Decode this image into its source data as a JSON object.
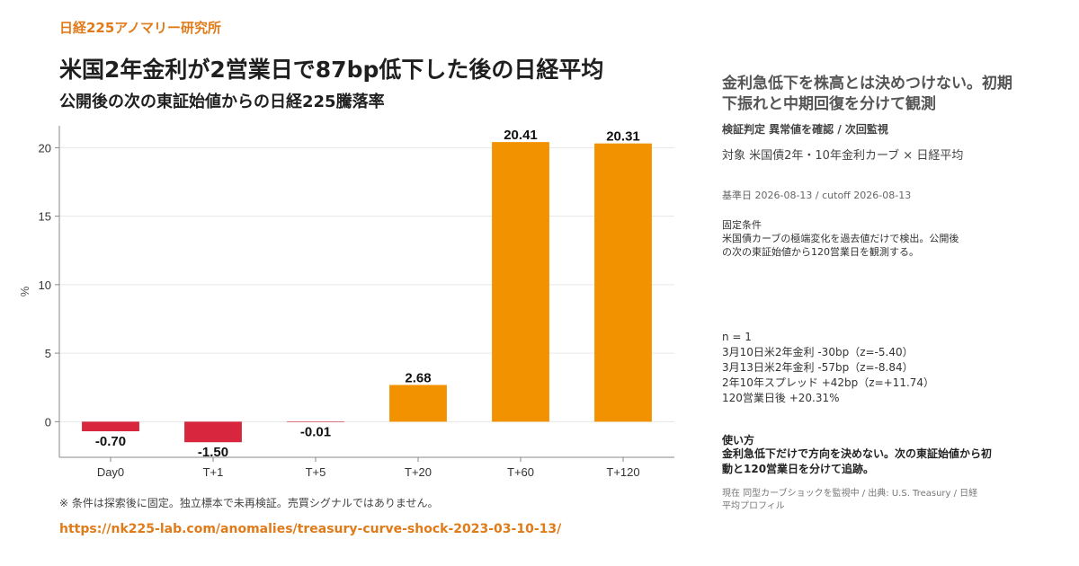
{
  "header": {
    "brand": "日経225アノマリー研究所",
    "title": "米国2年金利が2営業日で87bp低下した後の日経平均",
    "subtitle": "公開後の次の東証始値からの日経225騰落率"
  },
  "footer": {
    "note": "※ 条件は探索後に固定。独立標本で未再検証。売買シグナルではありません。",
    "url": "https://nk225-lab.com/anomalies/treasury-curve-shock-2023-03-10-13/"
  },
  "side": {
    "headline": "金利急低下を株高とは決めつけない。初期下振れと中期回復を分けて観測",
    "verdict": "検証判定  異常値を確認 / 次回監視",
    "target": "対象  米国債2年・10年金利カーブ × 日経平均",
    "dates": "基準日 2026-08-13 / cutoff 2026-08-13",
    "fixed_label": "固定条件",
    "fixed_text": "米国債カーブの極端変化を過去値だけで検出。公開後の次の東証始値から120営業日を観測する。",
    "stats": [
      "n = 1",
      "3月10日米2年金利  -30bp（z=-5.40）",
      "3月13日米2年金利  -57bp（z=-8.84）",
      "2年10年スプレッド  +42bp（z=+11.74）",
      "120営業日後  +20.31%"
    ],
    "usage_label": "使い方",
    "usage_text": "金利急低下だけで方向を決めない。次の東証始値から初動と120営業日を分けて追跡。",
    "source": "現在 同型カーブショックを監視中 / 出典: U.S. Treasury / 日経平均プロフィル"
  },
  "chart_data": {
    "type": "bar",
    "categories": [
      "Day0",
      "T+1",
      "T+5",
      "T+20",
      "T+60",
      "T+120"
    ],
    "values": [
      -0.7,
      -1.5,
      -0.01,
      2.68,
      20.41,
      20.31
    ],
    "value_labels": [
      "-0.70",
      "-1.50",
      "-0.01",
      "2.68",
      "20.41",
      "20.31"
    ],
    "ylabel": "%",
    "ylim": [
      -2.6,
      21.6
    ],
    "yticks": [
      0,
      5,
      10,
      15,
      20
    ],
    "grid": true,
    "colors": {
      "negative": "#d7263d",
      "positive": "#f39200",
      "grid": "#e6e6e6",
      "axis": "#888888"
    }
  }
}
